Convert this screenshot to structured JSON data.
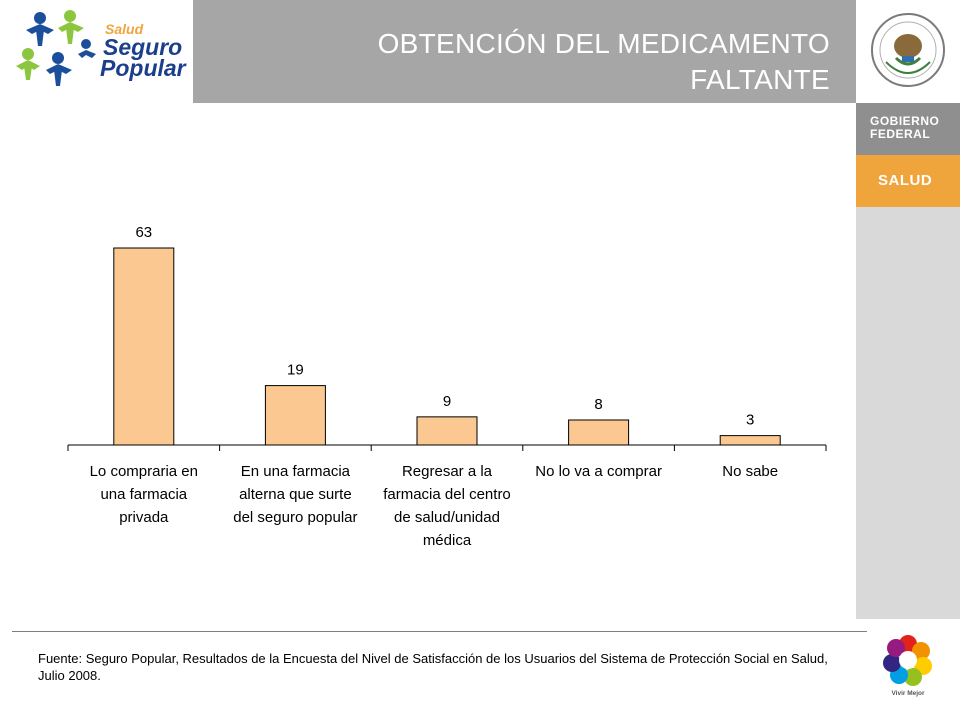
{
  "header": {
    "brand_small": "Salud",
    "brand_line1": "Seguro",
    "brand_line2": "Popular",
    "title_line1": "OBTENCIÓN DEL MEDICAMENTO",
    "title_line2": "FALTANTE"
  },
  "sidebar": {
    "gobierno_line1": "GOBIERNO",
    "gobierno_line2": "FEDERAL",
    "salud": "SALUD",
    "vivir_mejor": "Vivir Mejor"
  },
  "colors": {
    "title_bar": "#a6a6a6",
    "bar_fill": "#fac890",
    "salud_orange": "#f0a43c",
    "gobierno_gray": "#8f8f8f"
  },
  "chart_data": {
    "type": "bar",
    "categories": [
      [
        "Lo compraria en",
        "una farmacia",
        "privada"
      ],
      [
        "En una farmacia",
        "alterna que surte",
        "del seguro popular"
      ],
      [
        "Regresar a la",
        "farmacia del centro",
        "de salud/unidad",
        "médica"
      ],
      [
        "No lo va a comprar"
      ],
      [
        "No sabe"
      ]
    ],
    "values": [
      63,
      19,
      9,
      8,
      3
    ],
    "title": "",
    "xlabel": "",
    "ylabel": "",
    "ylim": [
      0,
      63
    ],
    "grid": false,
    "legend": "none"
  },
  "footer": {
    "source": "Fuente: Seguro Popular, Resultados de la Encuesta del Nivel de Satisfacción de los Usuarios del Sistema de Protección Social en Salud, Julio 2008."
  }
}
